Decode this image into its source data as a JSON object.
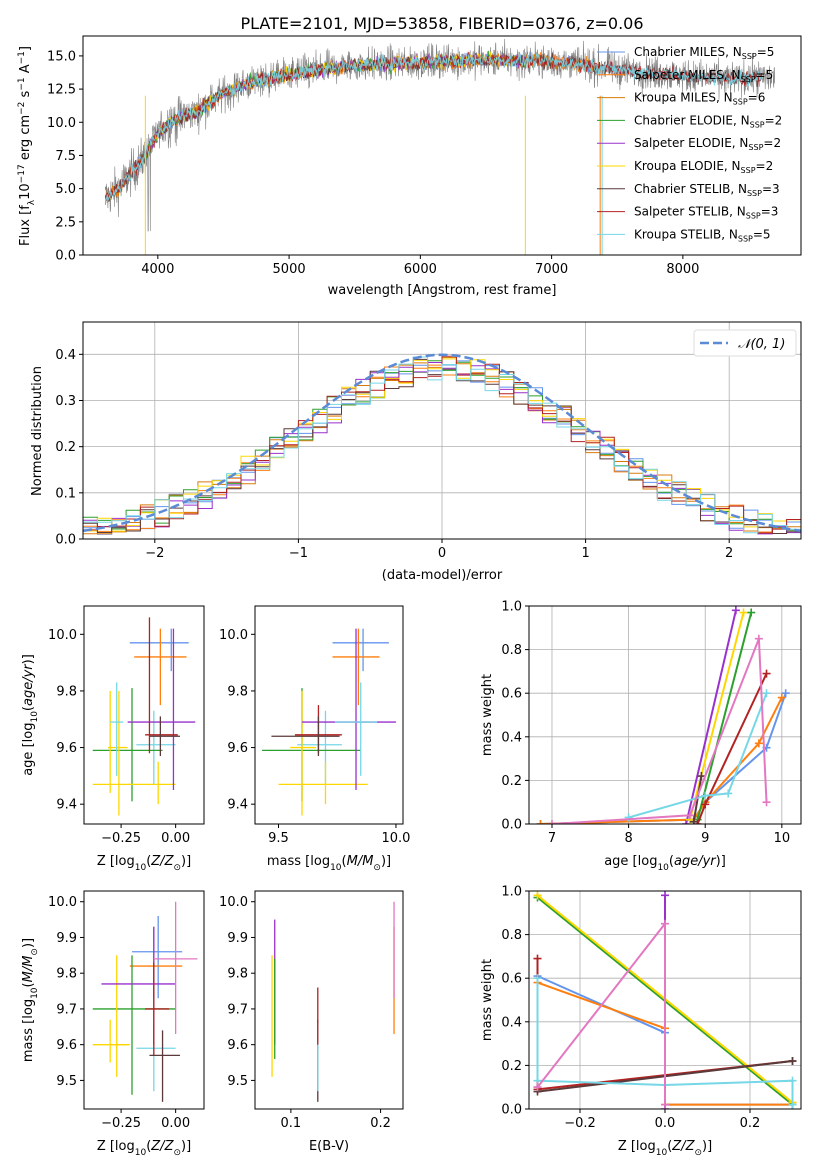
{
  "figure": {
    "title": "PLATE=2101, MJD=53858, FIBERID=0376, z=0.06"
  },
  "colors": {
    "Chabrier MILES": "#6495ed",
    "Salpeter MILES": "#ff7f0e",
    "Kroupa MILES": "#d97b0a",
    "Chabrier ELODIE": "#2ca02c",
    "Salpeter ELODIE": "#9932cc",
    "Kroupa ELODIE": "#ffd700",
    "Chabrier STELIB": "#5a3a3a",
    "Salpeter STELIB": "#b22222",
    "Kroupa STELIB": "#76d7e6",
    "Gauss": "#5b8bd6",
    "Data": "#808080"
  },
  "chart_data": [
    {
      "id": "spectrum",
      "type": "line",
      "title": "PLATE=2101, MJD=53858, FIBERID=0376, z=0.06",
      "xlabel": "wavelength [Angstrom, rest frame]",
      "ylabel": "Flux [f_λ10^-17 erg cm^-2 s^-1 A^-1]",
      "xlim": [
        3430,
        8900
      ],
      "ylim": [
        0,
        16.5
      ],
      "xticks": [
        4000,
        5000,
        6000,
        7000,
        8000
      ],
      "yticks": [
        0.0,
        2.5,
        5.0,
        7.5,
        10.0,
        12.5,
        15.0
      ],
      "ytick_labels": [
        "0.0",
        "2.5",
        "5.0",
        "7.5",
        "10.0",
        "12.5",
        "15.0"
      ],
      "grid": false,
      "legend": "top-right",
      "continuum": {
        "wavelength": [
          3600,
          3700,
          3800,
          3900,
          4000,
          4100,
          4200,
          4300,
          4400,
          4500,
          4700,
          5000,
          5500,
          6000,
          6500,
          7000,
          7500,
          7800,
          8100,
          8400,
          8700
        ],
        "flux": [
          4.3,
          5.0,
          6.2,
          7.4,
          9.2,
          10.0,
          10.5,
          10.8,
          11.5,
          12.2,
          13.0,
          13.6,
          14.3,
          14.5,
          14.7,
          14.6,
          14.0,
          13.7,
          13.4,
          13.3,
          13.4
        ]
      },
      "series": [
        {
          "name": "Chabrier MILES, N_SSP=5",
          "wmin": 3600,
          "wmax": 7380
        },
        {
          "name": "Salpeter MILES, N_SSP=5",
          "wmin": 3600,
          "wmax": 7380
        },
        {
          "name": "Kroupa MILES, N_SSP=6",
          "wmin": 3600,
          "wmax": 7380
        },
        {
          "name": "Chabrier ELODIE, N_SSP=2",
          "wmin": 3900,
          "wmax": 6800
        },
        {
          "name": "Salpeter ELODIE, N_SSP=2",
          "wmin": 3900,
          "wmax": 6800
        },
        {
          "name": "Kroupa ELODIE, N_SSP=2",
          "wmin": 3900,
          "wmax": 6800
        },
        {
          "name": "Chabrier STELIB, N_SSP=3",
          "wmin": 3600,
          "wmax": 8600
        },
        {
          "name": "Salpeter STELIB, N_SSP=3",
          "wmin": 3600,
          "wmax": 8600
        },
        {
          "name": "Kroupa STELIB, N_SSP=5",
          "wmin": 3600,
          "wmax": 8600
        }
      ],
      "legend_entries": [
        {
          "label": "Chabrier MILES, N",
          "sub": "SSP",
          "tail": "=5"
        },
        {
          "label": "Salpeter MILES, N",
          "sub": "SSP",
          "tail": "=5"
        },
        {
          "label": "Kroupa MILES, N",
          "sub": "SSP",
          "tail": "=6"
        },
        {
          "label": "Chabrier ELODIE, N",
          "sub": "SSP",
          "tail": "=2"
        },
        {
          "label": "Salpeter ELODIE, N",
          "sub": "SSP",
          "tail": "=2"
        },
        {
          "label": "Kroupa ELODIE, N",
          "sub": "SSP",
          "tail": "=2"
        },
        {
          "label": "Chabrier STELIB, N",
          "sub": "SSP",
          "tail": "=3"
        },
        {
          "label": "Salpeter STELIB, N",
          "sub": "SSP",
          "tail": "=3"
        },
        {
          "label": "Kroupa STELIB, N",
          "sub": "SSP",
          "tail": "=5"
        }
      ]
    },
    {
      "id": "residuals",
      "type": "bar",
      "xlabel": "(data-model)/error",
      "ylabel": "Normed distribution",
      "xlim": [
        -2.5,
        2.5
      ],
      "ylim": [
        0,
        0.47
      ],
      "xticks": [
        -2,
        -1,
        0,
        1,
        2
      ],
      "xtick_labels": [
        "−2",
        "−1",
        "0",
        "1",
        "2"
      ],
      "yticks": [
        0.0,
        0.1,
        0.2,
        0.3,
        0.4
      ],
      "ytick_labels": [
        "0.0",
        "0.1",
        "0.2",
        "0.3",
        "0.4"
      ],
      "grid": true,
      "legend": "top-right",
      "legend_label": "𝒩(0, 1)",
      "bin_width": 0.1,
      "bin_start": -2.5
    },
    {
      "id": "age-vs-Z",
      "type": "scatter",
      "xlabel": "Z [log10(Z/Z⊙)]",
      "ylabel": "age [log10(age/yr)]",
      "xlim": [
        -0.42,
        0.13
      ],
      "ylim": [
        9.33,
        10.1
      ],
      "xticks": [
        -0.25,
        0.0
      ],
      "xtick_labels": [
        "−0.25",
        "0.00"
      ],
      "yticks": [
        9.4,
        9.6,
        9.8,
        10.0
      ],
      "ytick_labels": [
        "9.4",
        "9.6",
        "9.8",
        "10.0"
      ],
      "grid": false,
      "points": [
        {
          "x": -0.02,
          "xlo": -0.21,
          "xhi": 0.06,
          "y": 9.97,
          "ylo": 9.87,
          "yhi": 10.02,
          "c": "Chabrier MILES"
        },
        {
          "x": -0.07,
          "xlo": -0.19,
          "xhi": 0.05,
          "y": 9.92,
          "ylo": 9.75,
          "yhi": 10.02,
          "c": "Salpeter MILES"
        },
        {
          "x": -0.1,
          "xlo": -0.18,
          "xhi": 0.0,
          "y": 9.61,
          "ylo": 9.47,
          "yhi": 9.73,
          "c": "Kroupa STELIB"
        },
        {
          "x": -0.2,
          "xlo": -0.38,
          "xhi": -0.06,
          "y": 9.59,
          "ylo": 9.41,
          "yhi": 9.81,
          "c": "Chabrier ELODIE"
        },
        {
          "x": -0.26,
          "xlo": -0.31,
          "xhi": -0.22,
          "y": 9.6,
          "ylo": 9.36,
          "yhi": 9.8,
          "c": "Kroupa ELODIE"
        },
        {
          "x": -0.08,
          "xlo": -0.22,
          "xhi": 0.0,
          "y": 9.47,
          "ylo": 9.4,
          "yhi": 9.55,
          "c": "Kroupa ELODIE"
        },
        {
          "x": -0.01,
          "xlo": -0.22,
          "xhi": 0.09,
          "y": 9.69,
          "ylo": 9.45,
          "yhi": 10.02,
          "c": "Salpeter ELODIE"
        },
        {
          "x": -0.12,
          "xlo": -0.14,
          "xhi": 0.01,
          "y": 9.645,
          "ylo": 9.58,
          "yhi": 10.06,
          "c": "Salpeter STELIB"
        },
        {
          "x": -0.07,
          "xlo": -0.12,
          "xhi": 0.02,
          "y": 9.64,
          "ylo": 9.57,
          "yhi": 9.71,
          "c": "Chabrier STELIB"
        },
        {
          "x": -0.3,
          "xlo": -0.38,
          "xhi": -0.21,
          "y": 9.47,
          "ylo": 9.44,
          "yhi": 9.8,
          "c": "Kroupa ELODIE"
        },
        {
          "x": -0.27,
          "xlo": -0.3,
          "xhi": -0.24,
          "y": 9.69,
          "ylo": 9.5,
          "yhi": 9.83,
          "c": "Kroupa STELIB"
        }
      ]
    },
    {
      "id": "age-vs-mass",
      "type": "scatter",
      "xlabel": "mass [log10(M/M⊙)]",
      "ylabel": "",
      "xlim": [
        9.4,
        10.03
      ],
      "ylim": [
        9.33,
        10.1
      ],
      "xticks": [
        9.5,
        10.0
      ],
      "xtick_labels": [
        "9.5",
        "10.0"
      ],
      "yticks": [
        9.4,
        9.6,
        9.8,
        10.0
      ],
      "ytick_labels": [
        "9.4",
        "9.6",
        "9.8",
        "10.0"
      ],
      "grid": false,
      "points": [
        {
          "x": 9.86,
          "xlo": 9.73,
          "xhi": 9.97,
          "y": 9.97,
          "ylo": 9.87,
          "yhi": 10.02,
          "c": "Chabrier MILES"
        },
        {
          "x": 9.84,
          "xlo": 9.73,
          "xhi": 9.93,
          "y": 9.92,
          "ylo": 9.75,
          "yhi": 10.02,
          "c": "Salpeter MILES"
        },
        {
          "x": 9.7,
          "xlo": 9.58,
          "xhi": 9.77,
          "y": 9.61,
          "ylo": 9.47,
          "yhi": 9.73,
          "c": "Kroupa STELIB"
        },
        {
          "x": 9.6,
          "xlo": 9.43,
          "xhi": 9.85,
          "y": 9.59,
          "ylo": 9.41,
          "yhi": 9.81,
          "c": "Chabrier ELODIE"
        },
        {
          "x": 9.6,
          "xlo": 9.55,
          "xhi": 9.66,
          "y": 9.6,
          "ylo": 9.36,
          "yhi": 9.8,
          "c": "Kroupa ELODIE"
        },
        {
          "x": 9.7,
          "xlo": 9.5,
          "xhi": 9.88,
          "y": 9.47,
          "ylo": 9.4,
          "yhi": 9.55,
          "c": "Kroupa ELODIE"
        },
        {
          "x": 9.83,
          "xlo": 9.6,
          "xhi": 10.0,
          "y": 9.69,
          "ylo": 9.45,
          "yhi": 10.02,
          "c": "Salpeter ELODIE"
        },
        {
          "x": 9.67,
          "xlo": 9.57,
          "xhi": 9.77,
          "y": 9.645,
          "ylo": 9.58,
          "yhi": 9.75,
          "c": "Salpeter STELIB"
        },
        {
          "x": 9.67,
          "xlo": 9.47,
          "xhi": 9.76,
          "y": 9.64,
          "ylo": 9.57,
          "yhi": 9.71,
          "c": "Chabrier STELIB"
        },
        {
          "x": 9.85,
          "xlo": 9.74,
          "xhi": 9.92,
          "y": 9.69,
          "ylo": 9.5,
          "yhi": 9.83,
          "c": "Kroupa STELIB"
        }
      ]
    },
    {
      "id": "massweight-vs-age",
      "type": "line",
      "xlabel": "age [log10(age/yr)]",
      "ylabel": "mass weight",
      "xlim": [
        6.7,
        10.25
      ],
      "ylim": [
        0,
        1.0
      ],
      "xticks": [
        7,
        8,
        9,
        10
      ],
      "xtick_labels": [
        "7",
        "8",
        "9",
        "10"
      ],
      "yticks": [
        0.0,
        0.2,
        0.4,
        0.6,
        0.8,
        1.0
      ],
      "ytick_labels": [
        "0.0",
        "0.2",
        "0.4",
        "0.6",
        "0.8",
        "1.0"
      ],
      "grid": true,
      "series": [
        {
          "c": "Chabrier MILES",
          "x": [
            6.85,
            8.85,
            9.0,
            9.8,
            10.05
          ],
          "y": [
            0.0,
            0.02,
            0.1,
            0.35,
            0.6
          ]
        },
        {
          "c": "Salpeter MILES",
          "x": [
            6.85,
            8.85,
            9.0,
            9.7,
            10.0
          ],
          "y": [
            0.0,
            0.02,
            0.1,
            0.37,
            0.58
          ]
        },
        {
          "c": "Chabrier ELODIE",
          "x": [
            8.9,
            9.6
          ],
          "y": [
            0.02,
            0.97
          ]
        },
        {
          "c": "Salpeter ELODIE",
          "x": [
            8.75,
            9.4
          ],
          "y": [
            0.0,
            0.98
          ]
        },
        {
          "c": "Kroupa ELODIE",
          "x": [
            8.8,
            9.5
          ],
          "y": [
            0.02,
            0.97
          ]
        },
        {
          "c": "Salpeter STELIB",
          "x": [
            8.9,
            9.0,
            9.8
          ],
          "y": [
            0.0,
            0.09,
            0.69
          ]
        },
        {
          "c": "Chabrier STELIB",
          "x": [
            8.85,
            8.95
          ],
          "y": [
            0.01,
            0.22
          ]
        },
        {
          "c": "Kroupa STELIB",
          "x": [
            8.0,
            9.0,
            9.3,
            9.8
          ],
          "y": [
            0.03,
            0.13,
            0.14,
            0.6
          ]
        },
        {
          "c": "pink",
          "x": [
            7.0,
            8.8,
            9.7,
            9.8
          ],
          "y": [
            0.0,
            0.04,
            0.85,
            0.1
          ]
        }
      ]
    },
    {
      "id": "mass-vs-Z",
      "type": "scatter",
      "xlabel": "Z [log10(Z/Z⊙)]",
      "ylabel": "mass [log10(M/M⊙)]",
      "xlim": [
        -0.42,
        0.13
      ],
      "ylim": [
        9.42,
        10.03
      ],
      "xticks": [
        -0.25,
        0.0
      ],
      "xtick_labels": [
        "−0.25",
        "0.00"
      ],
      "yticks": [
        9.5,
        9.6,
        9.7,
        9.8,
        9.9,
        10.0
      ],
      "ytick_labels": [
        "9.5",
        "9.6",
        "9.7",
        "9.8",
        "9.9",
        "10.0"
      ],
      "grid": false,
      "points": [
        {
          "x": -0.08,
          "xlo": -0.2,
          "xhi": 0.03,
          "y": 9.86,
          "ylo": 9.73,
          "yhi": 9.96,
          "c": "Chabrier MILES"
        },
        {
          "x": -0.1,
          "xlo": -0.21,
          "xhi": 0.03,
          "y": 9.82,
          "ylo": 9.73,
          "yhi": 9.93,
          "c": "Salpeter MILES"
        },
        {
          "x": -0.1,
          "xlo": -0.18,
          "xhi": 0.0,
          "y": 9.59,
          "ylo": 9.47,
          "yhi": 9.66,
          "c": "Kroupa STELIB"
        },
        {
          "x": -0.2,
          "xlo": -0.38,
          "xhi": 0.0,
          "y": 9.7,
          "ylo": 9.46,
          "yhi": 9.85,
          "c": "Chabrier ELODIE"
        },
        {
          "x": -0.27,
          "xlo": -0.3,
          "xhi": -0.22,
          "y": 9.6,
          "ylo": 9.51,
          "yhi": 9.85,
          "c": "Kroupa ELODIE"
        },
        {
          "x": -0.1,
          "xlo": -0.34,
          "xhi": 0.0,
          "y": 9.77,
          "ylo": 9.6,
          "yhi": 9.93,
          "c": "Salpeter ELODIE"
        },
        {
          "x": -0.1,
          "xlo": -0.14,
          "xhi": -0.03,
          "y": 9.7,
          "ylo": 9.57,
          "yhi": 9.83,
          "c": "Salpeter STELIB"
        },
        {
          "x": -0.06,
          "xlo": -0.12,
          "xhi": 0.02,
          "y": 9.57,
          "ylo": 9.44,
          "yhi": 9.64,
          "c": "Chabrier STELIB"
        },
        {
          "x": -0.3,
          "xlo": -0.38,
          "xhi": -0.21,
          "y": 9.6,
          "ylo": 9.55,
          "yhi": 9.67,
          "c": "Kroupa ELODIE"
        },
        {
          "x": 0.0,
          "xlo": -0.1,
          "xhi": 0.1,
          "y": 9.84,
          "ylo": 9.63,
          "yhi": 10.0,
          "c": "pink"
        }
      ]
    },
    {
      "id": "mass-vs-EBV",
      "type": "scatter",
      "xlabel": "E(B-V)",
      "ylabel": "",
      "xlim": [
        0.06,
        0.225
      ],
      "ylim": [
        9.42,
        10.03
      ],
      "xticks": [
        0.1,
        0.2
      ],
      "xtick_labels": [
        "0.1",
        "0.2"
      ],
      "yticks": [
        9.5,
        9.6,
        9.7,
        9.8,
        9.9,
        10.0
      ],
      "ytick_labels": [
        "9.5",
        "9.6",
        "9.7",
        "9.8",
        "9.9",
        "10.0"
      ],
      "grid": false,
      "points": [
        {
          "x": 0.079,
          "y": 9.68,
          "ylo": 9.51,
          "yhi": 9.85,
          "c": "Kroupa ELODIE"
        },
        {
          "x": 0.082,
          "y": 9.77,
          "ylo": 9.6,
          "yhi": 9.95,
          "c": "Salpeter ELODIE"
        },
        {
          "x": 0.082,
          "y": 9.7,
          "ylo": 9.56,
          "yhi": 9.84,
          "c": "Chabrier ELODIE"
        },
        {
          "x": 0.13,
          "y": 9.57,
          "ylo": 9.44,
          "yhi": 9.67,
          "c": "Chabrier STELIB"
        },
        {
          "x": 0.13,
          "y": 9.56,
          "ylo": 9.47,
          "yhi": 9.66,
          "c": "Kroupa STELIB"
        },
        {
          "x": 0.13,
          "y": 9.68,
          "ylo": 9.6,
          "yhi": 9.76,
          "c": "Salpeter STELIB"
        },
        {
          "x": 0.215,
          "y": 9.82,
          "ylo": 9.63,
          "yhi": 9.93,
          "c": "Salpeter MILES"
        },
        {
          "x": 0.215,
          "y": 9.86,
          "ylo": 9.73,
          "yhi": 10.0,
          "c": "pink"
        }
      ]
    },
    {
      "id": "massweight-vs-Z",
      "type": "line",
      "xlabel": "Z [log10(Z/Z⊙)]",
      "ylabel": "mass weight",
      "xlim": [
        -0.32,
        0.32
      ],
      "ylim": [
        0,
        1.0
      ],
      "xticks": [
        -0.2,
        0.0,
        0.2
      ],
      "xtick_labels": [
        "−0.2",
        "0.0",
        "0.2"
      ],
      "yticks": [
        0.0,
        0.2,
        0.4,
        0.6,
        0.8,
        1.0
      ],
      "ytick_labels": [
        "0.0",
        "0.2",
        "0.4",
        "0.6",
        "0.8",
        "1.0"
      ],
      "grid": true,
      "series": [
        {
          "c": "Chabrier MILES",
          "x": [
            -0.3,
            -0.3,
            0.0,
            0.0,
            0.3
          ],
          "y": [
            0.1,
            0.61,
            0.35,
            0.02,
            0.02
          ]
        },
        {
          "c": "Salpeter MILES",
          "x": [
            -0.3,
            -0.3,
            0.0,
            0.0,
            0.3
          ],
          "y": [
            0.1,
            0.58,
            0.37,
            0.02,
            0.02
          ]
        },
        {
          "c": "Chabrier ELODIE",
          "x": [
            -0.3,
            0.3
          ],
          "y": [
            0.97,
            0.02
          ]
        },
        {
          "c": "Kroupa ELODIE",
          "x": [
            -0.3,
            0.3
          ],
          "y": [
            0.98,
            0.03
          ]
        },
        {
          "c": "Salpeter ELODIE",
          "x": [
            0.0,
            0.0
          ],
          "y": [
            0.0,
            0.98
          ]
        },
        {
          "c": "Salpeter STELIB",
          "x": [
            -0.3,
            -0.3,
            0.3
          ],
          "y": [
            0.69,
            0.09,
            0.22
          ]
        },
        {
          "c": "Chabrier STELIB",
          "x": [
            -0.3,
            0.3
          ],
          "y": [
            0.08,
            0.22
          ]
        },
        {
          "c": "Kroupa STELIB",
          "x": [
            -0.3,
            -0.3,
            0.0,
            0.3,
            0.3
          ],
          "y": [
            0.6,
            0.13,
            0.11,
            0.13,
            0.02
          ]
        },
        {
          "c": "pink",
          "x": [
            -0.3,
            0.0,
            0.0
          ],
          "y": [
            0.1,
            0.85,
            0.02
          ]
        }
      ]
    }
  ]
}
